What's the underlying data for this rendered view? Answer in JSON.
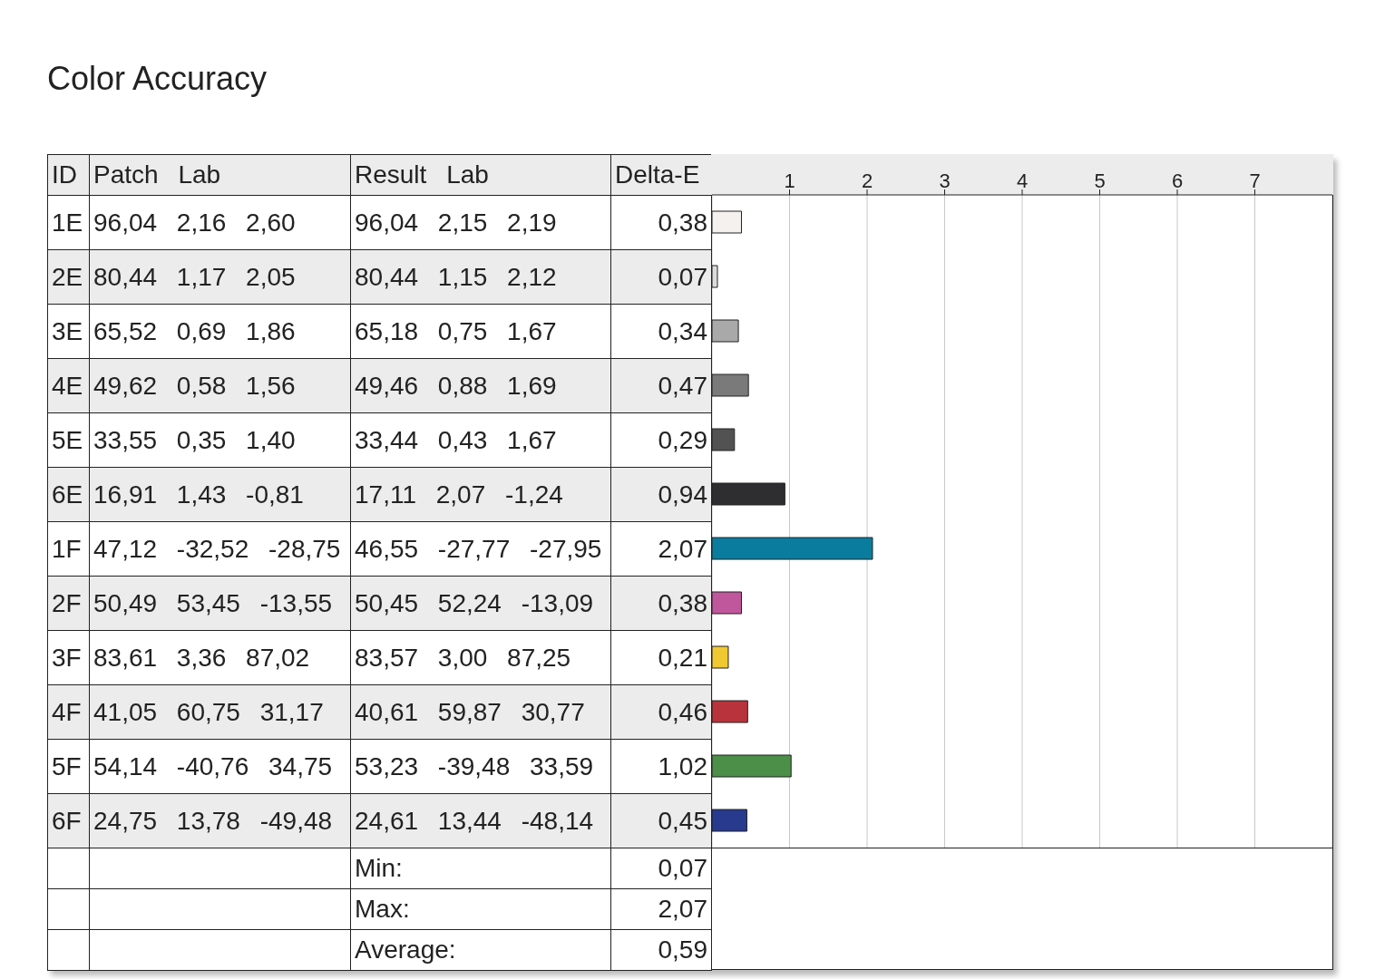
{
  "chart_data": {
    "type": "bar",
    "orientation": "horizontal",
    "title": "Color Accuracy",
    "categories": [
      "1E",
      "2E",
      "3E",
      "4E",
      "5E",
      "6E",
      "1F",
      "2F",
      "3F",
      "4F",
      "5F",
      "6F"
    ],
    "values": [
      0.38,
      0.07,
      0.34,
      0.47,
      0.29,
      0.94,
      2.07,
      0.38,
      0.21,
      0.46,
      1.02,
      0.45
    ],
    "value_labels": [
      "0,38",
      "0,07",
      "0,34",
      "0,47",
      "0,29",
      "0,94",
      "2,07",
      "0,38",
      "0,21",
      "0,46",
      "1,02",
      "0,45"
    ],
    "colors": [
      "#f5f1ef",
      "#dcdcdc",
      "#a9a9a9",
      "#7a7a7a",
      "#525252",
      "#2e2e30",
      "#0a7d9e",
      "#c0569c",
      "#f0c832",
      "#b8333b",
      "#4b8f48",
      "#283a8e"
    ],
    "x2lim": [
      0,
      8
    ],
    "x2ticks": [
      1,
      2,
      3,
      4,
      5,
      6,
      7
    ],
    "grid": "x",
    "annotations": [
      "ID",
      "Patch Lab",
      "Result Lab",
      "Delta-E",
      "96,04 2,16 2,60",
      "96,04 2,15 2,19",
      "80,44 1,17 2,05",
      "80,44 1,15 2,12",
      "65,52 0,69 1,86",
      "65,18 0,75 1,67",
      "49,62 0,58 1,56",
      "49,46 0,88 1,69",
      "33,55 0,35 1,40",
      "33,44 0,43 1,67",
      "16,91 1,43 -0,81",
      "17,11 2,07 -1,24",
      "47,12 -32,52 -28,75",
      "46,55 -27,77 -27,95",
      "50,49 53,45 -13,55",
      "50,45 52,24 -13,09",
      "83,61 3,36 87,02",
      "83,57 3,00 87,25",
      "41,05 60,75 31,17",
      "40,61 59,87 30,77",
      "54,14 -40,76 34,75",
      "53,23 -39,48 33,59",
      "24,75 13,78 -49,48",
      "24,61 13,44 -48,14",
      "Min:",
      "0,07",
      "Max:",
      "2,07",
      "Average:",
      "0,59"
    ]
  }
}
